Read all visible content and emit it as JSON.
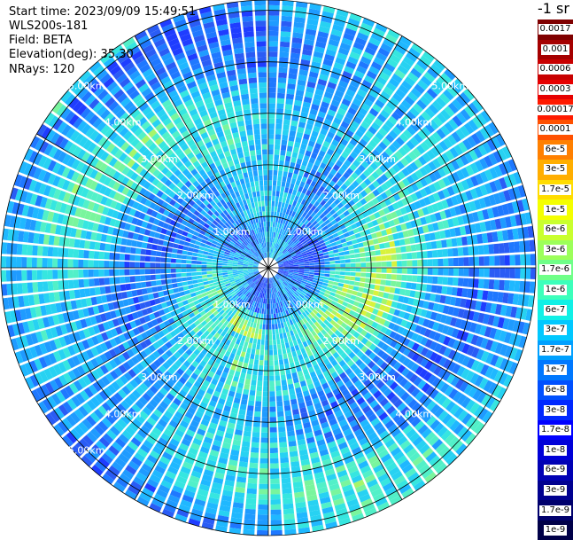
{
  "info": {
    "start_time": "Start time: 2023/09/09 15:49:51",
    "instrument": "WLS200s-181",
    "field": "Field: BETA",
    "elevation": "Elevation(deg): 35.30",
    "nrays": "NRays: 120"
  },
  "legend": {
    "unit_title": "-1 sr",
    "entries": [
      {
        "label": "0.0017",
        "color": "#7f0000"
      },
      {
        "label": "0.001",
        "color": "#a50000"
      },
      {
        "label": "0.0006",
        "color": "#c80000"
      },
      {
        "label": "0.0003",
        "color": "#e60000"
      },
      {
        "label": "0.00017",
        "color": "#ff1a00"
      },
      {
        "label": "0.0001",
        "color": "#ff5000"
      },
      {
        "label": "6e-5",
        "color": "#ff8000"
      },
      {
        "label": "3e-5",
        "color": "#ffae00"
      },
      {
        "label": "1.7e-5",
        "color": "#ffdc00"
      },
      {
        "label": "1e-5",
        "color": "#f4ff00"
      },
      {
        "label": "6e-6",
        "color": "#c9ff2e"
      },
      {
        "label": "3e-6",
        "color": "#9cff5a"
      },
      {
        "label": "1.7e-6",
        "color": "#6fff88"
      },
      {
        "label": "1e-6",
        "color": "#3cffbb"
      },
      {
        "label": "6e-7",
        "color": "#10f0e6"
      },
      {
        "label": "3e-7",
        "color": "#00c8ff"
      },
      {
        "label": "1.7e-7",
        "color": "#00a0ff"
      },
      {
        "label": "1e-7",
        "color": "#0078ff"
      },
      {
        "label": "6e-8",
        "color": "#0050ff"
      },
      {
        "label": "3e-8",
        "color": "#0028ff"
      },
      {
        "label": "1.7e-8",
        "color": "#0000ff"
      },
      {
        "label": "1e-8",
        "color": "#0000d8"
      },
      {
        "label": "6e-9",
        "color": "#0000b4"
      },
      {
        "label": "3e-9",
        "color": "#000090"
      },
      {
        "label": "1.7e-9",
        "color": "#00006c"
      },
      {
        "label": "1e-9",
        "color": "#000048"
      }
    ]
  },
  "chart_data": {
    "type": "heatmap",
    "projection": "polar-ppi",
    "field": "BETA",
    "n_rays": 120,
    "range_km": [
      0,
      5.2
    ],
    "range_rings_km": [
      1,
      2,
      3,
      4,
      5
    ],
    "spoke_step_deg": 30,
    "ring_labels": [
      {
        "text": "1.00km",
        "range_km": 1,
        "quadrants": [
          "NW",
          "NE",
          "SW",
          "SE"
        ]
      },
      {
        "text": "2.00km",
        "range_km": 2,
        "quadrants": [
          "NW",
          "NE",
          "SW",
          "SE"
        ]
      },
      {
        "text": "3.00km",
        "range_km": 3,
        "quadrants": [
          "NW",
          "NE",
          "SW",
          "SE"
        ]
      },
      {
        "text": "4.00km",
        "range_km": 4,
        "quadrants": [
          "NW",
          "NE",
          "SW",
          "SE"
        ]
      },
      {
        "text": "5.00km",
        "range_km": 5,
        "quadrants": [
          "NW",
          "NE",
          "SW"
        ]
      }
    ],
    "colorbar": "log-scale backscatter coefficient, 1e-9 to 0.0017 sr-1",
    "dominant_range": "1e-7 to 1e-6 (cyan/light blue), with localized values near 1.7e-6 to 1e-5 (green/yellow)"
  }
}
